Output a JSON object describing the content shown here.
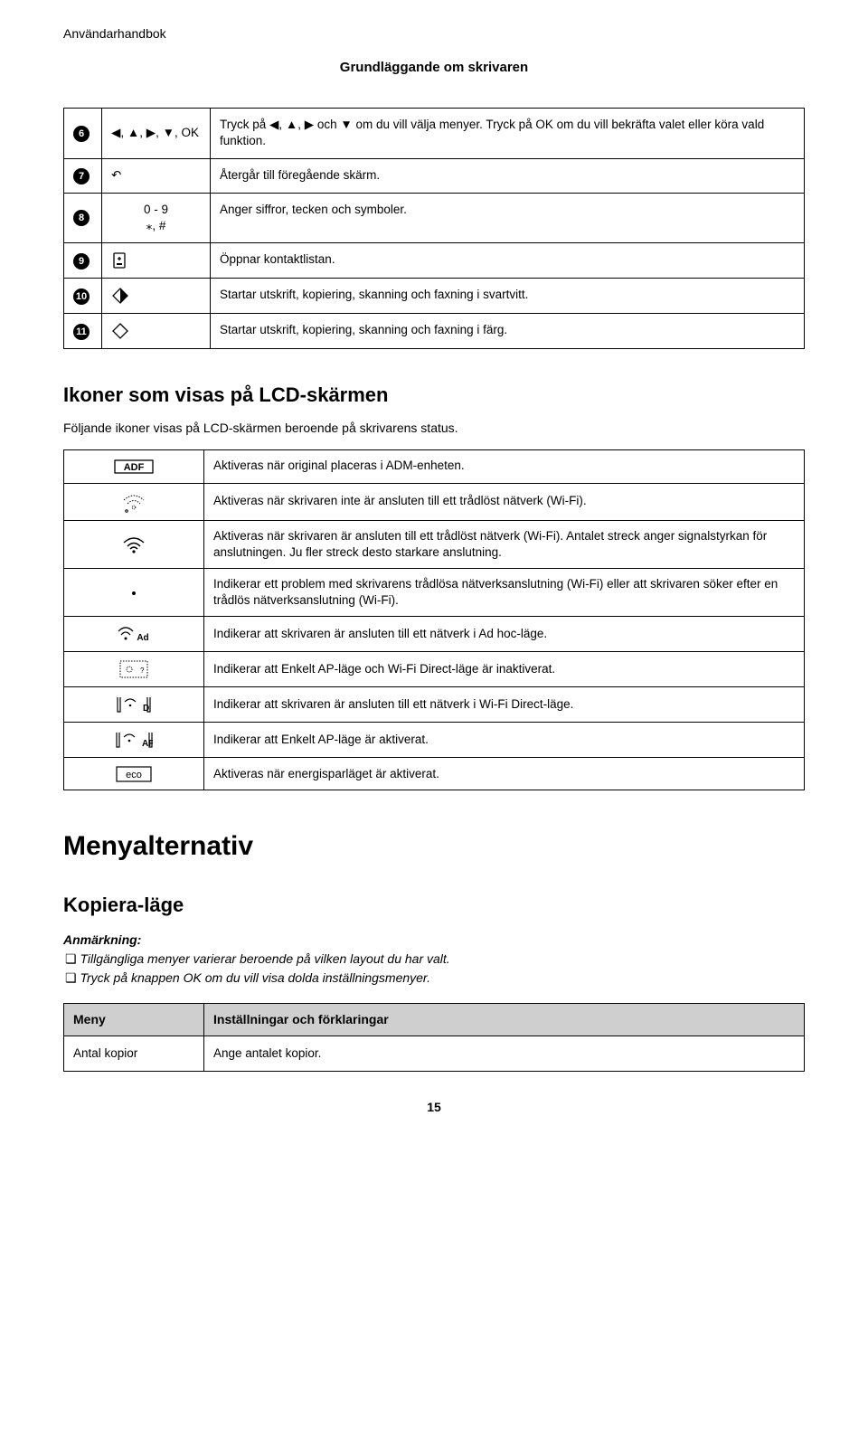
{
  "header": {
    "top_left": "Användarhandbok",
    "section": "Grundläggande om skrivaren"
  },
  "controls_table": {
    "rows": [
      {
        "num": "6",
        "symbol": "◀, ▲, ▶, ▼, OK",
        "desc": "Tryck på ◀, ▲, ▶ och ▼ om du vill välja menyer. Tryck på OK om du vill bekräfta valet eller köra vald funktion."
      },
      {
        "num": "7",
        "symbol": "↶",
        "desc": "Återgår till föregående skärm."
      },
      {
        "num": "8",
        "symbol": "0 - 9\n⁎, #",
        "desc": "Anger siffror, tecken och symboler."
      },
      {
        "num": "9",
        "symbol": "contacts-icon",
        "desc": "Öppnar kontaktlistan."
      },
      {
        "num": "10",
        "symbol": "diamond-bw-icon",
        "desc": "Startar utskrift, kopiering, skanning och faxning i svartvitt."
      },
      {
        "num": "11",
        "symbol": "diamond-color-icon",
        "desc": "Startar utskrift, kopiering, skanning och faxning i färg."
      }
    ]
  },
  "lcd_section": {
    "title": "Ikoner som visas på LCD-skärmen",
    "intro": "Följande ikoner visas på LCD-skärmen beroende på skrivarens status.",
    "rows": [
      {
        "icon": "adf",
        "desc": "Aktiveras när original placeras i ADM-enheten."
      },
      {
        "icon": "wifi-dotted",
        "desc": "Aktiveras när skrivaren inte är ansluten till ett trådlöst nätverk (Wi-Fi)."
      },
      {
        "icon": "wifi-bars",
        "desc": "Aktiveras när skrivaren är ansluten till ett trådlöst nätverk (Wi-Fi). Antalet streck anger signalstyrkan för anslutningen. Ju fler streck desto starkare anslutning."
      },
      {
        "icon": "dot",
        "desc": "Indikerar ett problem med skrivarens trådlösa nätverksanslutning (Wi-Fi) eller att skrivaren söker efter en trådlös nätverksanslutning (Wi-Fi)."
      },
      {
        "icon": "wifi-ad",
        "desc": "Indikerar att skrivaren är ansluten till ett nätverk i Ad hoc-läge."
      },
      {
        "icon": "ap-dotted",
        "desc": "Indikerar att Enkelt AP-läge och Wi-Fi Direct-läge är inaktiverat."
      },
      {
        "icon": "wifi-d",
        "desc": "Indikerar att skrivaren är ansluten till ett nätverk i Wi-Fi Direct-läge."
      },
      {
        "icon": "wifi-ap",
        "desc": "Indikerar att Enkelt AP-läge är aktiverat."
      },
      {
        "icon": "eco",
        "desc": "Aktiveras när energisparläget är aktiverat."
      }
    ]
  },
  "menu_section": {
    "title": "Menyalternativ",
    "mode_title": "Kopiera-läge",
    "note_label": "Anmärkning:",
    "notes": [
      "Tillgängliga menyer varierar beroende på vilken layout du har valt.",
      "Tryck på knappen OK om du vill visa dolda inställningsmenyer."
    ],
    "settings": {
      "head_col1": "Meny",
      "head_col2": "Inställningar och förklaringar",
      "rows": [
        {
          "c1": "Antal kopior",
          "c2": "Ange antalet kopior."
        }
      ]
    }
  },
  "page_number": "15",
  "colors": {
    "text": "#000000",
    "bg": "#ffffff",
    "th_bg": "#cfcfcf",
    "border": "#000000"
  }
}
